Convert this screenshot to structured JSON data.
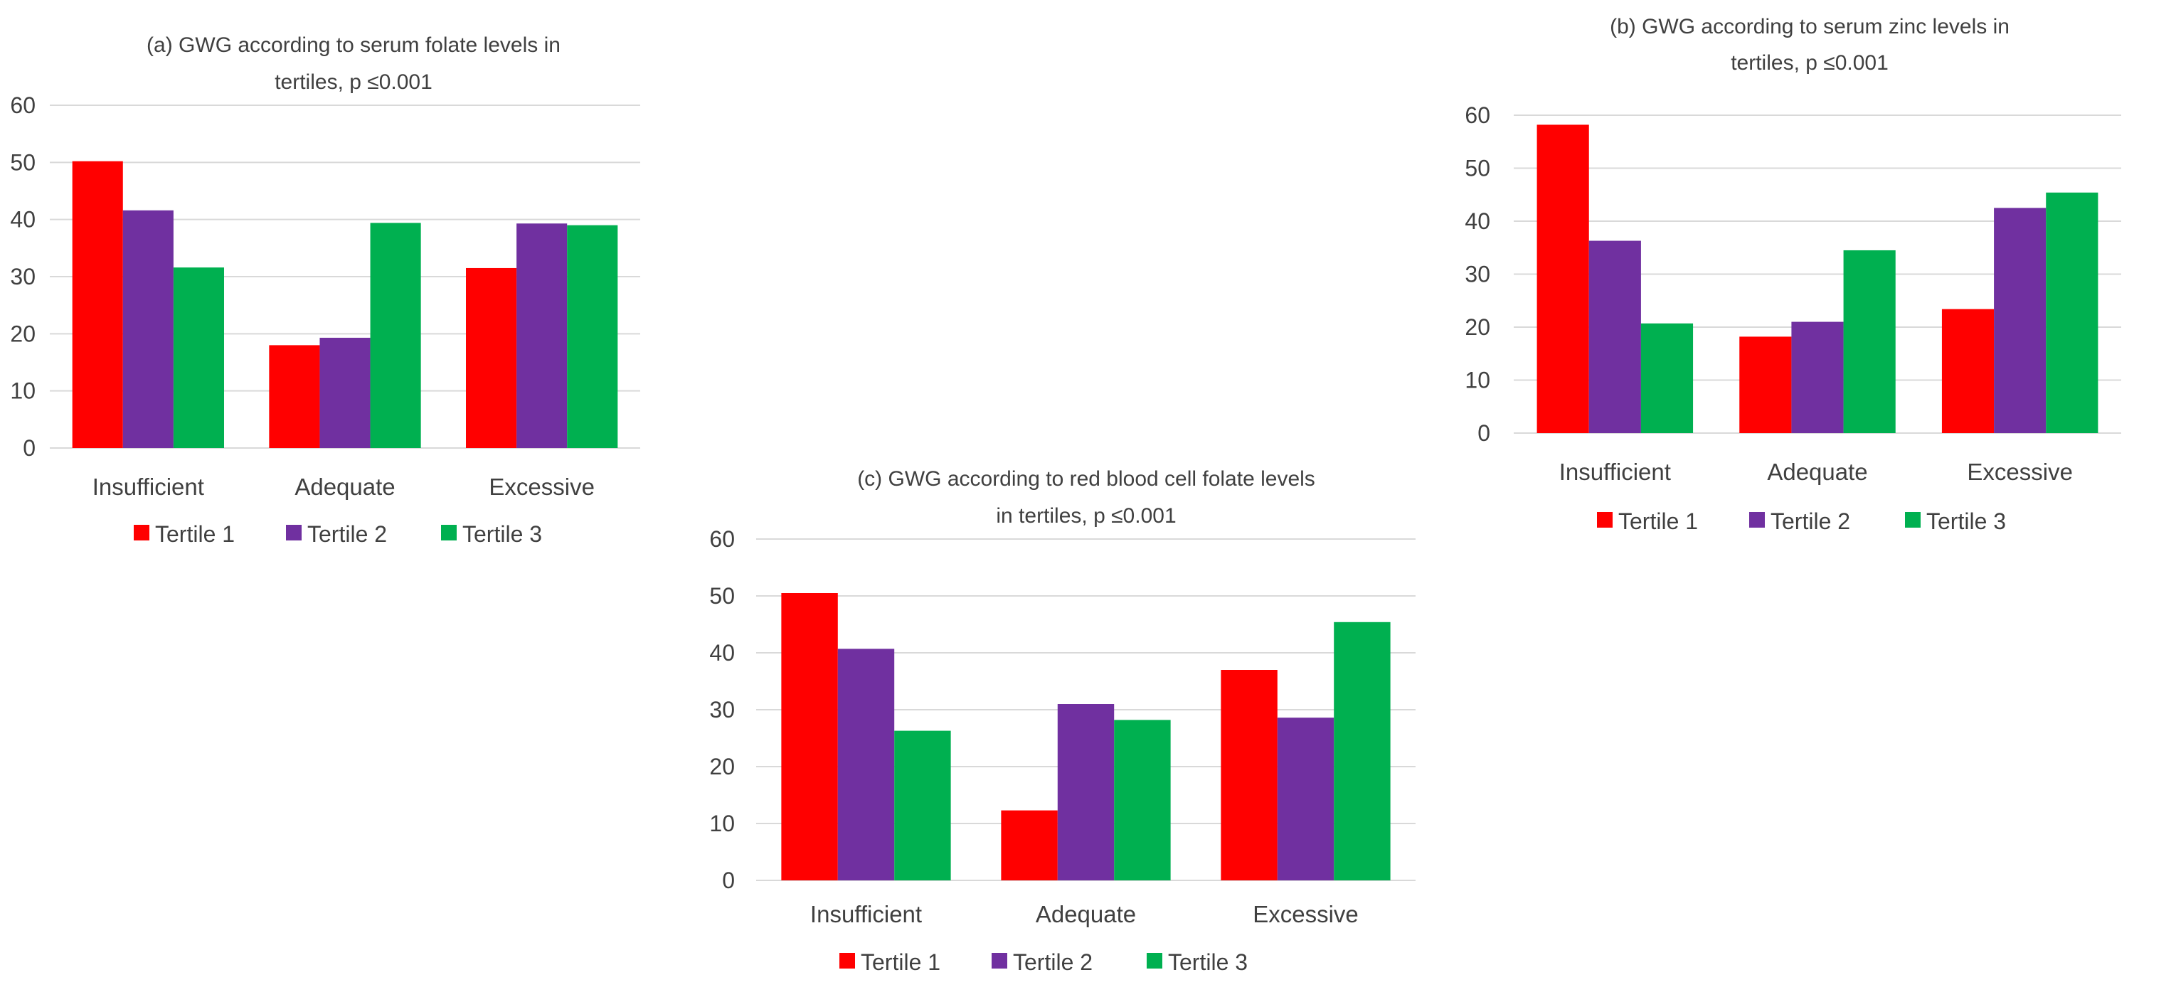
{
  "chart_data": [
    {
      "type": "bar",
      "title_lines": [
        "(a) GWG according to serum folate levels in",
        "tertiles, p ≤0.001"
      ],
      "categories": [
        "Insufficient",
        "Adequate",
        "Excessive"
      ],
      "series": [
        {
          "name": "Tertile 1",
          "color": "#ff0000",
          "values": [
            50.2,
            18.0,
            31.5
          ]
        },
        {
          "name": "Tertile 2",
          "color": "#7030a0",
          "values": [
            41.6,
            19.3,
            39.3
          ]
        },
        {
          "name": "Tertile 3",
          "color": "#00b050",
          "values": [
            31.6,
            39.4,
            39.0
          ]
        }
      ],
      "ylim": [
        0,
        60
      ],
      "yticks": [
        0,
        10,
        20,
        30,
        40,
        50,
        60
      ],
      "grid": true,
      "legend": "bottom"
    },
    {
      "type": "bar",
      "title_lines": [
        "(b) GWG according to serum zinc levels in",
        "tertiles, p ≤0.001"
      ],
      "categories": [
        "Insufficient",
        "Adequate",
        "Excessive"
      ],
      "series": [
        {
          "name": "Tertile 1",
          "color": "#ff0000",
          "values": [
            58.2,
            18.2,
            23.4
          ]
        },
        {
          "name": "Tertile 2",
          "color": "#7030a0",
          "values": [
            36.3,
            21.0,
            42.5
          ]
        },
        {
          "name": "Tertile 3",
          "color": "#00b050",
          "values": [
            20.7,
            34.5,
            45.4
          ]
        }
      ],
      "ylim": [
        0,
        60
      ],
      "yticks": [
        0,
        10,
        20,
        30,
        40,
        50,
        60
      ],
      "grid": true,
      "legend": "bottom"
    },
    {
      "type": "bar",
      "title_lines": [
        "(c) GWG according to red blood cell folate levels",
        "in tertiles, p ≤0.001"
      ],
      "categories": [
        "Insufficient",
        "Adequate",
        "Excessive"
      ],
      "series": [
        {
          "name": "Tertile 1",
          "color": "#ff0000",
          "values": [
            50.5,
            12.3,
            37.0
          ]
        },
        {
          "name": "Tertile 2",
          "color": "#7030a0",
          "values": [
            40.7,
            31.0,
            28.6
          ]
        },
        {
          "name": "Tertile 3",
          "color": "#00b050",
          "values": [
            26.3,
            28.2,
            45.4
          ]
        }
      ],
      "ylim": [
        0,
        60
      ],
      "yticks": [
        0,
        10,
        20,
        30,
        40,
        50,
        60
      ],
      "grid": true,
      "legend": "bottom"
    }
  ]
}
